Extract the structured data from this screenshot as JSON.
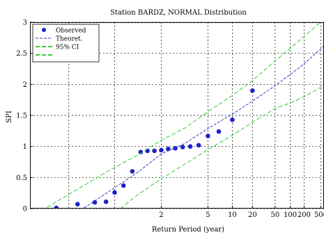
{
  "chart_data": {
    "type": "scatter",
    "title": "Station BARDZ, NORMAL Distribution",
    "xlabel": "Return Period (year)",
    "ylabel": "SPI",
    "x_scale": "normal-probability",
    "xlim": [
      1.009,
      600
    ],
    "ylim": [
      0,
      3
    ],
    "grid": true,
    "legend_position": "top-left",
    "x_ticks": [
      {
        "value": 2,
        "label": "2"
      },
      {
        "value": 5,
        "label": "5"
      },
      {
        "value": 10,
        "label": "10"
      },
      {
        "value": 20,
        "label": "20"
      },
      {
        "value": 50,
        "label": "50"
      },
      {
        "value": 100,
        "label": "100"
      },
      {
        "value": 200,
        "label": "200"
      },
      {
        "value": 500,
        "label": "500"
      }
    ],
    "y_ticks": [
      {
        "value": 0,
        "label": "0"
      },
      {
        "value": 0.5,
        "label": "0.5"
      },
      {
        "value": 1,
        "label": "1"
      },
      {
        "value": 1.5,
        "label": "1.5"
      },
      {
        "value": 2,
        "label": "2"
      },
      {
        "value": 2.5,
        "label": "2.5"
      },
      {
        "value": 3,
        "label": "3"
      }
    ],
    "x_grid_extra": [
      1.05,
      1.25
    ],
    "series": [
      {
        "name": "Observed",
        "kind": "points",
        "color": "#1e22c8",
        "x": [
          1.03,
          1.07,
          1.13,
          1.19,
          1.25,
          1.33,
          1.43,
          1.55,
          1.67,
          1.82,
          2.0,
          2.22,
          2.5,
          2.86,
          3.33,
          4.0,
          5.0,
          6.67,
          10.0,
          20.0
        ],
        "y": [
          0.01,
          0.07,
          0.1,
          0.11,
          0.26,
          0.37,
          0.6,
          0.91,
          0.93,
          0.93,
          0.94,
          0.96,
          0.97,
          0.99,
          1.0,
          1.02,
          1.17,
          1.24,
          1.43,
          1.9
        ]
      },
      {
        "name": "Theoret.",
        "kind": "line",
        "color": "#3a3ac8",
        "dash": "4,2",
        "x": [
          1.06,
          1.2,
          1.5,
          2,
          3,
          5,
          10,
          20,
          50,
          100,
          200,
          600
        ],
        "y": [
          -0.1,
          0.26,
          0.58,
          0.88,
          1.05,
          1.29,
          1.52,
          1.73,
          1.98,
          2.16,
          2.33,
          2.62
        ]
      },
      {
        "name": "95% CI",
        "kind": "line",
        "color": "#33cc33",
        "dash": "6,3",
        "x": [
          1.02,
          1.2,
          1.5,
          2,
          3,
          5,
          10,
          20,
          50,
          100,
          200,
          600
        ],
        "y": [
          0.02,
          0.6,
          0.86,
          1.1,
          1.3,
          1.56,
          1.82,
          2.06,
          2.38,
          2.58,
          2.77,
          3.05
        ]
      },
      {
        "name": "",
        "kind": "line",
        "color": "#33cc33",
        "dash": "6,3",
        "x": [
          1.3,
          1.5,
          2,
          3,
          5,
          10,
          20,
          50,
          100,
          200,
          600
        ],
        "y": [
          0.0,
          0.22,
          0.48,
          0.72,
          0.95,
          1.18,
          1.39,
          1.61,
          1.7,
          1.8,
          1.98
        ]
      }
    ]
  }
}
